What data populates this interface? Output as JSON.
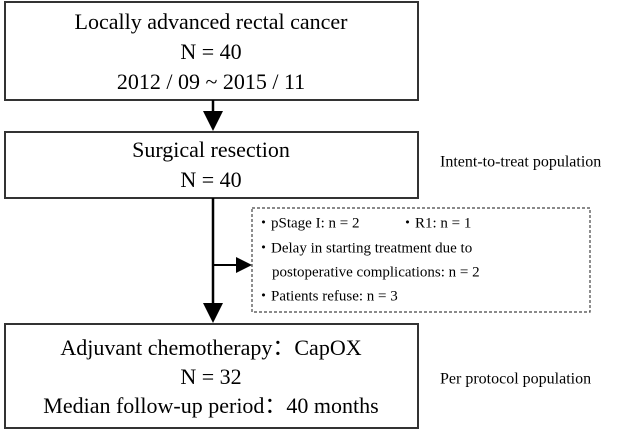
{
  "nodes": [
    {
      "lines": [
        "Locally advanced rectal cancer",
        "N = 40",
        "2012 / 09 ~ 2015 / 11"
      ]
    },
    {
      "lines": [
        "Surgical resection",
        "N = 40"
      ],
      "side_label": "Intent-to-treat population"
    },
    {
      "lines": [
        "Adjuvant chemotherapy：CapOX",
        "N = 32",
        "Median follow-up period：40 months"
      ],
      "side_label": "Per protocol population"
    }
  ],
  "exclusions": {
    "lines": [
      [
        "・pStage I:  n = 2",
        "・R1: n = 1"
      ],
      [
        "・Delay in starting treatment due to"
      ],
      [
        "postoperative complications:  n = 2"
      ],
      [
        "・Patients refuse:  n = 3"
      ]
    ]
  }
}
